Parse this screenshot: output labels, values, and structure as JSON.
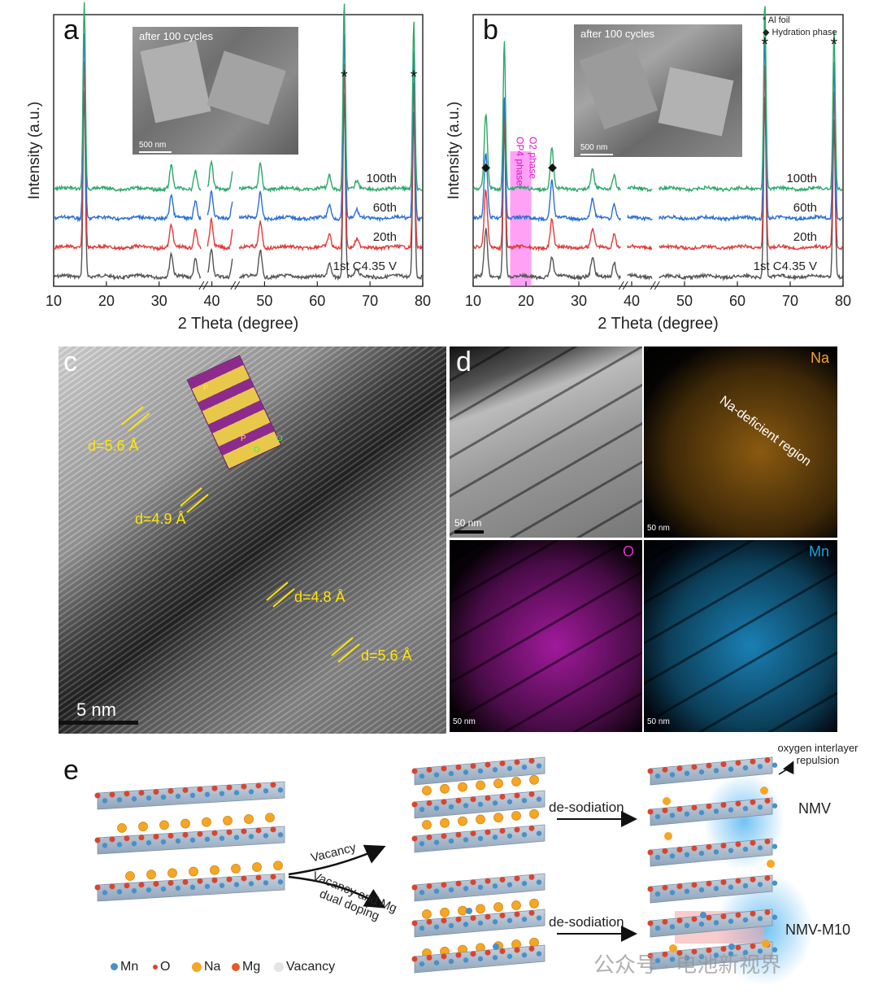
{
  "panel_labels": {
    "a": "a",
    "b": "b",
    "c": "c",
    "d": "d",
    "e": "e"
  },
  "chart_data": [
    {
      "type": "line",
      "panel": "a",
      "title": "",
      "xlabel": "2 Theta (degree)",
      "ylabel": "Intensity (a.u.)",
      "xlim": [
        10,
        80
      ],
      "xticks": [
        10,
        20,
        30,
        40,
        50,
        60,
        70,
        80
      ],
      "axis_breaks_at": [
        38.5,
        44.5
      ],
      "series": [
        {
          "name": "1st C4.35 V",
          "color": "#555555",
          "offset": 0,
          "peaks": [
            [
              15.8,
              1.0
            ],
            [
              32.3,
              0.12
            ],
            [
              36.9,
              0.1
            ],
            [
              39.9,
              0.14
            ],
            [
              44.0,
              0.1
            ],
            [
              49.2,
              0.14
            ],
            [
              62.3,
              0.07
            ],
            [
              65.1,
              1.0
            ],
            [
              67.5,
              0.04
            ],
            [
              78.3,
              0.9
            ]
          ]
        },
        {
          "name": "20th",
          "color": "#e03c3c",
          "offset": 1,
          "peaks": [
            [
              15.8,
              1.0
            ],
            [
              32.3,
              0.12
            ],
            [
              36.9,
              0.1
            ],
            [
              39.9,
              0.14
            ],
            [
              44.0,
              0.1
            ],
            [
              49.2,
              0.14
            ],
            [
              62.3,
              0.07
            ],
            [
              65.1,
              1.0
            ],
            [
              67.5,
              0.04
            ],
            [
              78.3,
              0.9
            ]
          ]
        },
        {
          "name": "60th",
          "color": "#2a6fd6",
          "offset": 2,
          "peaks": [
            [
              15.8,
              1.0
            ],
            [
              32.3,
              0.12
            ],
            [
              36.9,
              0.1
            ],
            [
              39.9,
              0.14
            ],
            [
              44.0,
              0.1
            ],
            [
              49.2,
              0.14
            ],
            [
              62.3,
              0.07
            ],
            [
              65.1,
              1.0
            ],
            [
              67.5,
              0.04
            ],
            [
              78.3,
              0.9
            ]
          ]
        },
        {
          "name": "100th",
          "color": "#2ea86a",
          "offset": 3,
          "peaks": [
            [
              15.8,
              1.0
            ],
            [
              32.3,
              0.12
            ],
            [
              36.9,
              0.1
            ],
            [
              39.9,
              0.14
            ],
            [
              44.0,
              0.1
            ],
            [
              49.2,
              0.14
            ],
            [
              62.3,
              0.07
            ],
            [
              65.1,
              1.0
            ],
            [
              67.5,
              0.04
            ],
            [
              78.3,
              0.9
            ]
          ]
        }
      ],
      "annotations": [
        {
          "text": "*",
          "x": 65.1
        },
        {
          "text": "*",
          "x": 78.3
        }
      ],
      "inset": {
        "title": "after 100 cycles",
        "scale": "500 nm"
      }
    },
    {
      "type": "line",
      "panel": "b",
      "title": "",
      "xlabel": "2 Theta (degree)",
      "ylabel": "Intensity (a.u.)",
      "xlim": [
        10,
        80
      ],
      "xticks": [
        10,
        20,
        30,
        40,
        50,
        60,
        70,
        80
      ],
      "axis_breaks_at": [
        38.5,
        44.5
      ],
      "highlight_band": {
        "x0": 17.0,
        "x1": 21.0,
        "color": "#ff55ee",
        "labels": [
          "OP4 phase",
          "O2 phase"
        ]
      },
      "series": [
        {
          "name": "1st C4.35 V",
          "color": "#555555",
          "offset": 0,
          "peaks": [
            [
              12.4,
              0.25
            ],
            [
              15.9,
              0.85
            ],
            [
              24.9,
              0.1
            ],
            [
              32.6,
              0.1
            ],
            [
              36.7,
              0.08
            ],
            [
              65.2,
              1.0
            ],
            [
              78.3,
              0.85
            ]
          ]
        },
        {
          "name": "20th",
          "color": "#e03c3c",
          "offset": 1,
          "peaks": [
            [
              12.4,
              0.3
            ],
            [
              15.9,
              0.75
            ],
            [
              24.9,
              0.15
            ],
            [
              32.6,
              0.1
            ],
            [
              36.7,
              0.08
            ],
            [
              65.2,
              1.0
            ],
            [
              78.3,
              0.85
            ]
          ]
        },
        {
          "name": "60th",
          "color": "#2a6fd6",
          "offset": 2,
          "peaks": [
            [
              12.4,
              0.35
            ],
            [
              15.9,
              0.65
            ],
            [
              24.9,
              0.2
            ],
            [
              32.6,
              0.1
            ],
            [
              36.7,
              0.08
            ],
            [
              65.2,
              1.0
            ],
            [
              78.3,
              0.85
            ]
          ]
        },
        {
          "name": "100th",
          "color": "#2ea86a",
          "offset": 3,
          "peaks": [
            [
              12.4,
              0.4
            ],
            [
              15.9,
              0.8
            ],
            [
              24.9,
              0.22
            ],
            [
              32.6,
              0.1
            ],
            [
              36.7,
              0.08
            ],
            [
              65.2,
              1.0
            ],
            [
              78.3,
              0.85
            ]
          ]
        }
      ],
      "legend": [
        "* Al foil",
        "◆ Hydration phase"
      ],
      "markers": [
        {
          "symbol": "◆",
          "x": 12.4
        },
        {
          "symbol": "◆",
          "x": 25.0
        },
        {
          "symbol": "*",
          "x": 65.2
        },
        {
          "symbol": "*",
          "x": 78.3
        }
      ],
      "inset": {
        "title": "after 100 cycles",
        "scale": "500 nm"
      }
    }
  ],
  "panel_c": {
    "labels": [
      "d=5.6 Å",
      "d=4.9 Å",
      "d=4.8 Å",
      "d=5.6 Å"
    ],
    "scale": "5 nm",
    "structure_letters": [
      "P",
      "P",
      "O",
      "O"
    ]
  },
  "panel_d": {
    "scale": "50 nm",
    "maps": {
      "na": "Na",
      "o": "O",
      "mn": "Mn"
    },
    "annotation": "Na-deficient region",
    "colors": {
      "na": "#f2a52a",
      "o": "#e02bd6",
      "mn": "#1f9fd9"
    }
  },
  "panel_e": {
    "arrow_up": "Vacancy",
    "arrow_down": "Vacancy and Mg dual doping",
    "desodiation_top": "de-sodiation",
    "desodiation_bottom": "de-sodiation",
    "repulsion": "oxygen interlayer repulsion",
    "nmv": "NMV",
    "nmv_m10": "NMV-M10",
    "legend": [
      "Mn",
      "O",
      "Na",
      "Mg",
      "Vacancy"
    ],
    "watermark": "公众号 · 电池新视界"
  }
}
